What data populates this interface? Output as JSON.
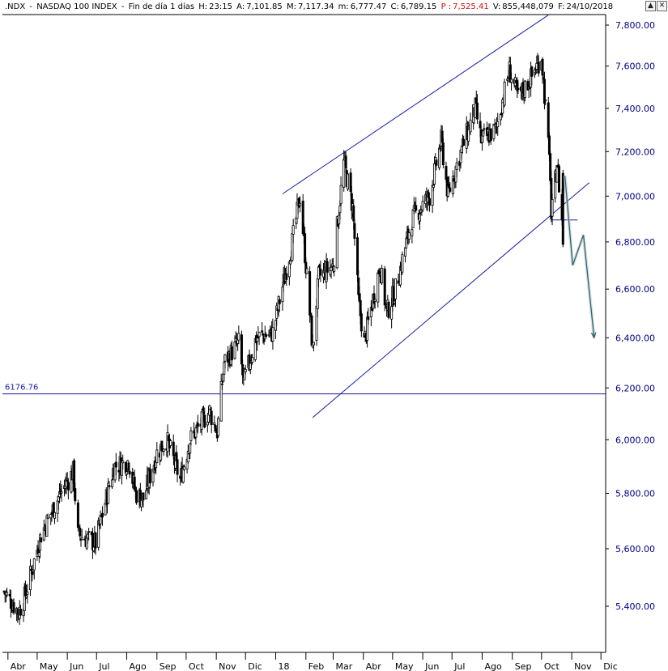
{
  "header": {
    "symbol": ".NDX",
    "sep1": " - ",
    "name": "NASDAQ 100 INDEX",
    "sep2": " - ",
    "period": "Fin de día 1 días",
    "h_label": "H:",
    "h_value": "23:15",
    "a_label": "A:",
    "a_value": "7,101.85",
    "m_label": "M:",
    "m_value": "7,117.34",
    "mm_label": "m:",
    "mm_value": "6,777.47",
    "c_label": "C:",
    "c_value": "6,789.15",
    "p_label": "P :",
    "p_value": "7,525.41",
    "v_label": "V:",
    "v_value": "855,448,079",
    "f_label": "F:",
    "f_value": "24/10/2018",
    "colors": {
      "text": "#000000",
      "p_value": "#d01010"
    }
  },
  "window_buttons": {
    "up": "▲",
    "close": "✕",
    "up_icon": "arrow-up-icon",
    "close_icon": "close-icon"
  },
  "chart_data": {
    "type": "candlestick",
    "instrument": ".NDX - NASDAQ 100 INDEX",
    "y_axis": {
      "ticks": [
        "7,800.00",
        "7,600.00",
        "7,400.00",
        "7,200.00",
        "7,000.00",
        "6,800.00",
        "6,600.00",
        "6,400.00",
        "6,200.00",
        "6,000.00",
        "5,800.00",
        "5,600.00",
        "5,400.00"
      ],
      "tick_values": [
        7800,
        7600,
        7400,
        7200,
        7000,
        6800,
        6600,
        6400,
        6200,
        6000,
        5800,
        5600,
        5400
      ],
      "scale": "log",
      "range": [
        5280,
        7880
      ],
      "side": "right"
    },
    "x_axis": {
      "labels": [
        "Abr",
        "May",
        "Jun",
        "Jul",
        "Ago",
        "Sep",
        "Oct",
        "Nov",
        "Dic",
        "18",
        "Feb",
        "Mar",
        "Abr",
        "May",
        "Jun",
        "Jul",
        "Ago",
        "Sep",
        "Oct",
        "Nov",
        "Dic"
      ],
      "label_dates": [
        "2017-04-01",
        "2017-05-01",
        "2017-06-01",
        "2017-07-01",
        "2017-08-01",
        "2017-09-01",
        "2017-10-01",
        "2017-11-01",
        "2017-12-01",
        "2018-01-01",
        "2018-02-01",
        "2018-03-01",
        "2018-04-01",
        "2018-05-01",
        "2018-06-01",
        "2018-07-01",
        "2018-08-01",
        "2018-09-01",
        "2018-10-01",
        "2018-11-01",
        "2018-12-01"
      ],
      "range": [
        "2017-03-28",
        "2018-12-05"
      ]
    },
    "series": [
      {
        "name": "NDX",
        "anchors": [
          [
            "2017-03-28",
            5450
          ],
          [
            "2017-04-12",
            5380
          ],
          [
            "2017-04-19",
            5440
          ],
          [
            "2017-05-05",
            5650
          ],
          [
            "2017-05-25",
            5800
          ],
          [
            "2017-06-07",
            5880
          ],
          [
            "2017-06-12",
            5650
          ],
          [
            "2017-06-30",
            5620
          ],
          [
            "2017-07-19",
            5900
          ],
          [
            "2017-08-03",
            5920
          ],
          [
            "2017-08-10",
            5800
          ],
          [
            "2017-08-18",
            5780
          ],
          [
            "2017-09-01",
            5950
          ],
          [
            "2017-09-11",
            6000
          ],
          [
            "2017-09-25",
            5850
          ],
          [
            "2017-10-05",
            6000
          ],
          [
            "2017-10-25",
            6110
          ],
          [
            "2017-11-02",
            6030
          ],
          [
            "2017-11-09",
            6300
          ],
          [
            "2017-11-24",
            6380
          ],
          [
            "2017-11-29",
            6220
          ],
          [
            "2017-12-12",
            6400
          ],
          [
            "2017-12-29",
            6420
          ],
          [
            "2018-01-18",
            6800
          ],
          [
            "2018-01-26",
            7000
          ],
          [
            "2018-02-08",
            6350
          ],
          [
            "2018-02-14",
            6650
          ],
          [
            "2018-03-01",
            6700
          ],
          [
            "2018-03-12",
            7150
          ],
          [
            "2018-03-21",
            6950
          ],
          [
            "2018-03-27",
            6550
          ],
          [
            "2018-04-02",
            6380
          ],
          [
            "2018-04-18",
            6700
          ],
          [
            "2018-04-25",
            6500
          ],
          [
            "2018-05-04",
            6600
          ],
          [
            "2018-05-21",
            6900
          ],
          [
            "2018-06-08",
            7000
          ],
          [
            "2018-06-20",
            7250
          ],
          [
            "2018-06-27",
            7000
          ],
          [
            "2018-07-03",
            7100
          ],
          [
            "2018-07-25",
            7400
          ],
          [
            "2018-07-31",
            7250
          ],
          [
            "2018-08-15",
            7300
          ],
          [
            "2018-08-29",
            7580
          ],
          [
            "2018-09-07",
            7450
          ],
          [
            "2018-09-21",
            7550
          ],
          [
            "2018-10-01",
            7650
          ],
          [
            "2018-10-10",
            7100
          ],
          [
            "2018-10-11",
            6900
          ],
          [
            "2018-10-17",
            7150
          ],
          [
            "2018-10-24",
            6789.15
          ]
        ]
      }
    ],
    "last_bar": {
      "date": "2018-10-24",
      "open": 7101.85,
      "high": 7117.34,
      "low": 6777.47,
      "close": 6789.15
    },
    "reference_line": {
      "value": 6176.76,
      "label": "6176.76",
      "color": "#1a1aa0"
    },
    "channel": {
      "upper": {
        "from": [
          "2018-01-08",
          7010
        ],
        "to": [
          "2018-10-08",
          7850
        ]
      },
      "lower": {
        "from": [
          "2018-02-08",
          6085
        ],
        "to": [
          "2018-11-19",
          7060
        ]
      },
      "color": "#1a1aa0"
    },
    "support_segment": {
      "from": "2018-10-11",
      "to": "2018-11-07",
      "value": 6895,
      "color": "#1a1aa0"
    },
    "projection_arrow": {
      "points": [
        [
          "2018-10-25",
          7090
        ],
        [
          "2018-11-02",
          6700
        ],
        [
          "2018-11-13",
          6830
        ],
        [
          "2018-11-24",
          6400
        ]
      ],
      "color": "#2e6670"
    },
    "colors": {
      "candle": "#000000",
      "grid": "#000000",
      "background": "#ffffff",
      "price_labels": "#000080"
    }
  }
}
